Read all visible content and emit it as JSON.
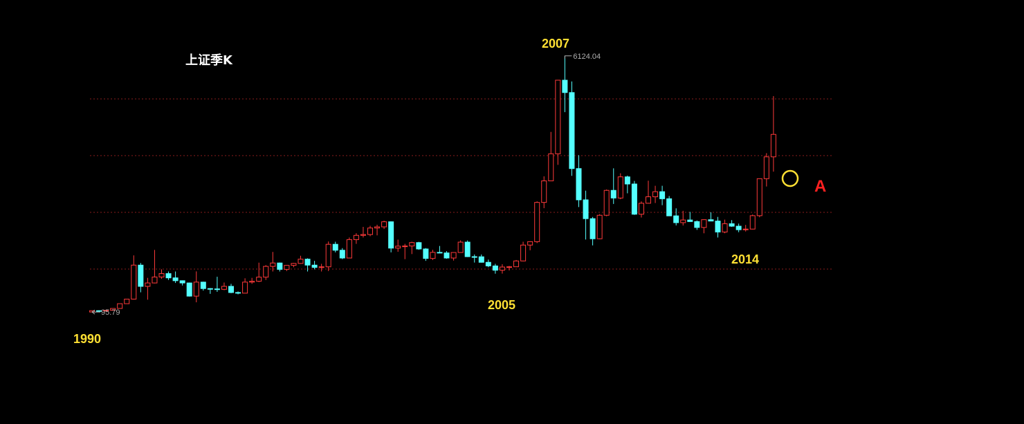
{
  "chart_data": {
    "type": "candlestick",
    "title": "上证季K",
    "annotations": [
      {
        "text": "1990"
      },
      {
        "text": "2005"
      },
      {
        "text": "2007"
      },
      {
        "text": "2014"
      },
      {
        "text": "A"
      }
    ],
    "open": [
      96.05,
      127.6,
      120,
      137,
      180,
      292,
      400,
      1200,
      700,
      780,
      920,
      1000,
      900,
      833,
      780,
      470,
      800,
      648,
      640,
      630,
      700,
      555,
      540,
      800,
      820,
      917,
      1170,
      1250,
      1100,
      1194,
      1240,
      1340,
      1200,
      1146,
      1160,
      1690,
      1550,
      1367,
      1800,
      1900,
      1920,
      2073,
      2100,
      2220,
      1600,
      1646,
      1650,
      1730,
      1580,
      1357,
      1500,
      1487,
      1367,
      1497,
      1741,
      1399,
      1396,
      1266,
      1181,
      1080,
      1155,
      1161,
      1298,
      1672,
      1752,
      2675,
      3183,
      3820,
      5552,
      5261,
      3472,
      2736,
      2293,
      1820,
      2373,
      2959,
      2779,
      3277,
      3109,
      2398,
      2656,
      2808,
      2928,
      2762,
      2359,
      2199,
      2262,
      2225,
      2086,
      2269,
      2237,
      1979,
      2174,
      2116,
      2033,
      2048,
      2363,
      3234,
      3748
    ],
    "high": [
      127.61,
      135,
      137,
      180,
      292,
      400,
      1429,
      1250,
      900,
      1558,
      1100,
      1050,
      1050,
      840,
      790,
      1052,
      810,
      660,
      926,
      790,
      760,
      580,
      890,
      900,
      1258,
      1200,
      1510,
      1260,
      1200,
      1250,
      1420,
      1360,
      1300,
      1230,
      1756,
      1750,
      1600,
      1850,
      1950,
      2100,
      2125,
      2150,
      2245,
      2230,
      1800,
      1700,
      1750,
      1748,
      1600,
      1560,
      1650,
      1530,
      1500,
      1783,
      1780,
      1450,
      1450,
      1330,
      1230,
      1220,
      1180,
      1320,
      1750,
      1760,
      2700,
      3290,
      4335,
      5560,
      6124.04,
      5522,
      3786,
      2952,
      2333,
      2400,
      2980,
      3478,
      3361,
      3306,
      3181,
      2700,
      3186,
      3067,
      3067,
      2826,
      2536,
      2478,
      2453,
      2250,
      2276,
      2444,
      2334,
      2270,
      2259,
      2177,
      2146,
      2391,
      3239,
      3835,
      5178
    ],
    "low": [
      95.79,
      104,
      115,
      135,
      180,
      290,
      390,
      560,
      386,
      770,
      880,
      850,
      780,
      720,
      460,
      325,
      600,
      524,
      570,
      610,
      540,
      512,
      535,
      760,
      800,
      850,
      1050,
      1050,
      1060,
      1150,
      1230,
      1050,
      1100,
      1050,
      1060,
      1500,
      1340,
      1360,
      1700,
      1850,
      1880,
      1900,
      2050,
      1500,
      1514,
      1340,
      1460,
      1560,
      1300,
      1320,
      1480,
      1350,
      1307,
      1490,
      1390,
      1260,
      1259,
      1150,
      998,
      1000,
      1074,
      1160,
      1290,
      1550,
      1720,
      2540,
      3183,
      3560,
      4800,
      3300,
      2566,
      1802,
      1664,
      1810,
      2350,
      2639,
      2750,
      2890,
      2382,
      2320,
      2650,
      2661,
      2610,
      2359,
      2134,
      2132,
      2220,
      2029,
      1949,
      2232,
      1849,
      1950,
      2100,
      1974,
      1991,
      2040,
      2326,
      3050,
      3400
    ],
    "close": [
      127.61,
      120,
      137,
      180,
      292,
      400,
      1200,
      700,
      780,
      920,
      1000,
      900,
      833,
      780,
      470,
      800,
      648,
      640,
      630,
      700,
      555,
      540,
      800,
      820,
      917,
      1170,
      1250,
      1100,
      1194,
      1240,
      1340,
      1200,
      1146,
      1160,
      1690,
      1550,
      1367,
      1800,
      1900,
      1920,
      2073,
      2100,
      2220,
      1600,
      1646,
      1650,
      1730,
      1580,
      1357,
      1500,
      1487,
      1367,
      1497,
      1741,
      1399,
      1396,
      1266,
      1181,
      1080,
      1155,
      1161,
      1298,
      1672,
      1752,
      2675,
      3183,
      3820,
      5552,
      5261,
      3472,
      2736,
      2293,
      1820,
      2373,
      2959,
      2779,
      3277,
      3109,
      2398,
      2656,
      2808,
      2928,
      2762,
      2359,
      2199,
      2262,
      2225,
      2086,
      2269,
      2237,
      1979,
      2174,
      2116,
      2033,
      2048,
      2363,
      3234,
      3748,
      4277
    ],
    "up_color": "#ff3a3a",
    "down_color": "#54ffff",
    "ylim": [
      0,
      7000
    ],
    "yticks": [
      1107,
      2442,
      3777,
      5112
    ],
    "grid": true,
    "log_scale": false
  }
}
